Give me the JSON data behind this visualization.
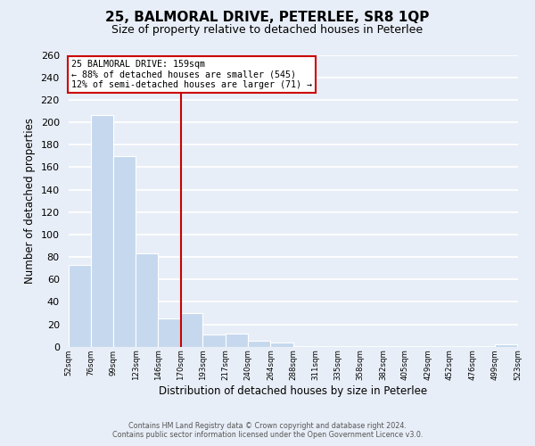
{
  "title": "25, BALMORAL DRIVE, PETERLEE, SR8 1QP",
  "subtitle": "Size of property relative to detached houses in Peterlee",
  "xlabel": "Distribution of detached houses by size in Peterlee",
  "ylabel": "Number of detached properties",
  "bar_left_edges": [
    52,
    76,
    99,
    123,
    146,
    170,
    193,
    217,
    240,
    264,
    288,
    311,
    335,
    358,
    382,
    405,
    429,
    452,
    476,
    499
  ],
  "bar_widths": [
    24,
    23,
    24,
    23,
    24,
    23,
    24,
    23,
    24,
    24,
    23,
    24,
    23,
    24,
    23,
    24,
    23,
    24,
    23,
    24
  ],
  "bar_heights": [
    73,
    206,
    170,
    83,
    25,
    30,
    11,
    12,
    5,
    4,
    0,
    0,
    0,
    0,
    0,
    0,
    0,
    0,
    0,
    2
  ],
  "bar_color": "#c5d8ee",
  "vline_x": 170,
  "vline_color": "#cc0000",
  "annotation_title": "25 BALMORAL DRIVE: 159sqm",
  "annotation_line1": "← 88% of detached houses are smaller (545)",
  "annotation_line2": "12% of semi-detached houses are larger (71) →",
  "annotation_box_edgecolor": "#cc0000",
  "annotation_box_facecolor": "#ffffff",
  "tick_labels": [
    "52sqm",
    "76sqm",
    "99sqm",
    "123sqm",
    "146sqm",
    "170sqm",
    "193sqm",
    "217sqm",
    "240sqm",
    "264sqm",
    "288sqm",
    "311sqm",
    "335sqm",
    "358sqm",
    "382sqm",
    "405sqm",
    "429sqm",
    "452sqm",
    "476sqm",
    "499sqm",
    "523sqm"
  ],
  "ylim": [
    0,
    260
  ],
  "yticks": [
    0,
    20,
    40,
    60,
    80,
    100,
    120,
    140,
    160,
    180,
    200,
    220,
    240,
    260
  ],
  "footer_line1": "Contains HM Land Registry data © Crown copyright and database right 2024.",
  "footer_line2": "Contains public sector information licensed under the Open Government Licence v3.0.",
  "fig_background_color": "#e8eef7",
  "plot_background_color": "#e8eef7",
  "grid_color": "#ffffff"
}
